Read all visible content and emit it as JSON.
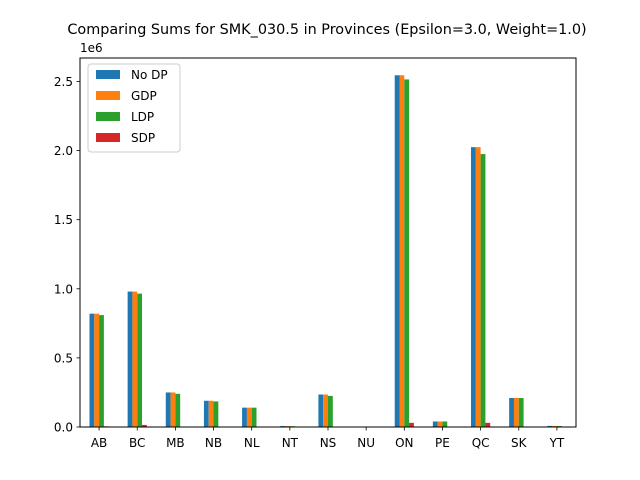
{
  "chart_data": {
    "type": "bar",
    "title": "Comparing Sums for SMK_030.5 in Provinces (Epsilon=3.0, Weight=1.0)",
    "xlabel": "",
    "ylabel": "",
    "y_scale_label": "1e6",
    "ylim": [
      0,
      2.67
    ],
    "y_ticks": [
      0.0,
      0.5,
      1.0,
      1.5,
      2.0,
      2.5
    ],
    "y_tick_labels": [
      "0.0",
      "0.5",
      "1.0",
      "1.5",
      "2.0",
      "2.5"
    ],
    "grid": false,
    "legend_placement": "top-left",
    "categories": [
      "AB",
      "BC",
      "MB",
      "NB",
      "NL",
      "NT",
      "NS",
      "NU",
      "ON",
      "PE",
      "QC",
      "SK",
      "YT"
    ],
    "series": [
      {
        "name": "No DP",
        "color": "#1f77b4",
        "values": [
          0.82,
          0.98,
          0.25,
          0.19,
          0.14,
          0.007,
          0.235,
          0.003,
          2.545,
          0.04,
          2.025,
          0.21,
          0.008
        ]
      },
      {
        "name": "GDP",
        "color": "#ff7f0e",
        "values": [
          0.82,
          0.98,
          0.25,
          0.19,
          0.14,
          0.007,
          0.235,
          0.003,
          2.545,
          0.04,
          2.025,
          0.21,
          0.008
        ]
      },
      {
        "name": "LDP",
        "color": "#2ca02c",
        "values": [
          0.81,
          0.965,
          0.24,
          0.185,
          0.14,
          0.006,
          0.225,
          0.002,
          2.515,
          0.04,
          1.975,
          0.21,
          0.007
        ]
      },
      {
        "name": "SDP",
        "color": "#d62728",
        "values": [
          0.005,
          0.015,
          0.003,
          0.002,
          0.002,
          0.0,
          0.003,
          0.0,
          0.03,
          0.001,
          0.03,
          0.002,
          0.0
        ]
      }
    ]
  }
}
